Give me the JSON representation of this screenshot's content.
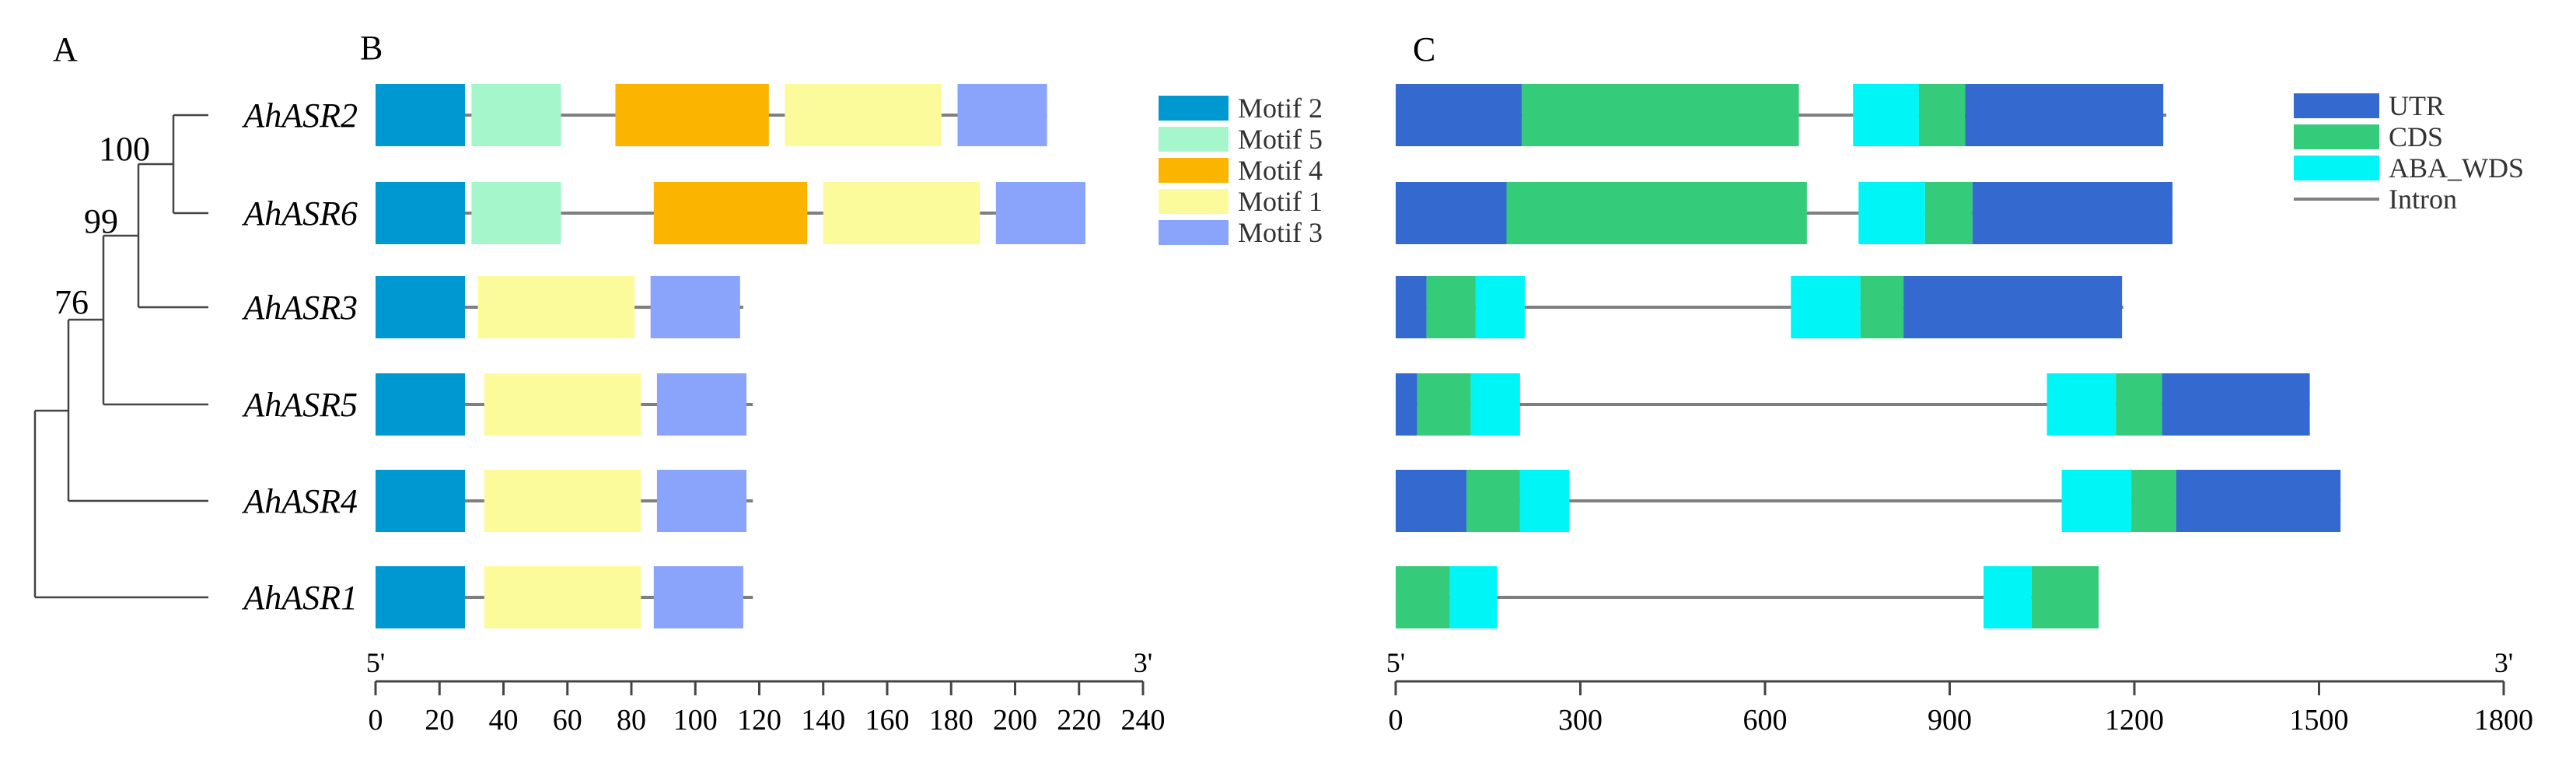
{
  "panels": {
    "a": "A",
    "b": "B",
    "c": "C"
  },
  "tree": {
    "bootstrap": [
      "100",
      "99",
      "76"
    ]
  },
  "colors": {
    "motif2": "#0098d0",
    "motif5": "#a5f7cb",
    "motif4": "#fbb500",
    "motif1": "#fbfb9c",
    "motif3": "#8aa4fb",
    "utr": "#3469cf",
    "cds": "#34cb7a",
    "aba": "#00f6f6",
    "intron": "#7f7f7f"
  },
  "motif_panel": {
    "legend": [
      {
        "key": "motif2",
        "label": "Motif 2"
      },
      {
        "key": "motif5",
        "label": "Motif 5"
      },
      {
        "key": "motif4",
        "label": "Motif 4"
      },
      {
        "key": "motif1",
        "label": "Motif 1"
      },
      {
        "key": "motif3",
        "label": "Motif 3"
      }
    ],
    "axis": {
      "min": 0,
      "max": 240,
      "ticks": [
        "0",
        "20",
        "40",
        "60",
        "80",
        "100",
        "120",
        "140",
        "160",
        "180",
        "200",
        "220",
        "240"
      ],
      "start_label": "5'",
      "end_label": "3'"
    },
    "genes": [
      {
        "name": "AhASR2",
        "length": 210,
        "motifs": [
          {
            "key": "motif2",
            "start": 0,
            "end": 28
          },
          {
            "key": "motif5",
            "start": 30,
            "end": 58
          },
          {
            "key": "motif4",
            "start": 75,
            "end": 123
          },
          {
            "key": "motif1",
            "start": 128,
            "end": 177
          },
          {
            "key": "motif3",
            "start": 182,
            "end": 210
          }
        ]
      },
      {
        "name": "AhASR6",
        "length": 222,
        "motifs": [
          {
            "key": "motif2",
            "start": 0,
            "end": 28
          },
          {
            "key": "motif5",
            "start": 30,
            "end": 58
          },
          {
            "key": "motif4",
            "start": 87,
            "end": 135
          },
          {
            "key": "motif1",
            "start": 140,
            "end": 189
          },
          {
            "key": "motif3",
            "start": 194,
            "end": 222
          }
        ]
      },
      {
        "name": "AhASR3",
        "length": 115,
        "motifs": [
          {
            "key": "motif2",
            "start": 0,
            "end": 28
          },
          {
            "key": "motif1",
            "start": 32,
            "end": 81
          },
          {
            "key": "motif3",
            "start": 86,
            "end": 114
          }
        ]
      },
      {
        "name": "AhASR5",
        "length": 118,
        "motifs": [
          {
            "key": "motif2",
            "start": 0,
            "end": 28
          },
          {
            "key": "motif1",
            "start": 34,
            "end": 83
          },
          {
            "key": "motif3",
            "start": 88,
            "end": 116
          }
        ]
      },
      {
        "name": "AhASR4",
        "length": 118,
        "motifs": [
          {
            "key": "motif2",
            "start": 0,
            "end": 28
          },
          {
            "key": "motif1",
            "start": 34,
            "end": 83
          },
          {
            "key": "motif3",
            "start": 88,
            "end": 116
          }
        ]
      },
      {
        "name": "AhASR1",
        "length": 118,
        "motifs": [
          {
            "key": "motif2",
            "start": 0,
            "end": 28
          },
          {
            "key": "motif1",
            "start": 34,
            "end": 83
          },
          {
            "key": "motif3",
            "start": 87,
            "end": 115
          }
        ]
      }
    ]
  },
  "structure_panel": {
    "legend": [
      {
        "key": "utr",
        "label": "UTR",
        "kind": "box"
      },
      {
        "key": "cds",
        "label": "CDS",
        "kind": "box"
      },
      {
        "key": "aba",
        "label": "ABA_WDS",
        "kind": "box"
      },
      {
        "key": "intron",
        "label": "Intron",
        "kind": "line"
      }
    ],
    "axis": {
      "min": 0,
      "max": 1800,
      "ticks": [
        "0",
        "300",
        "600",
        "900",
        "1200",
        "1500",
        "1800"
      ],
      "start_label": "5'",
      "end_label": "3'"
    },
    "genes": [
      {
        "name": "AhASR2",
        "length": 1252,
        "segments": [
          {
            "key": "utr",
            "start": 0,
            "end": 205
          },
          {
            "key": "cds",
            "start": 205,
            "end": 655
          },
          {
            "key": "aba",
            "start": 743,
            "end": 850
          },
          {
            "key": "cds",
            "start": 850,
            "end": 925
          },
          {
            "key": "utr",
            "start": 925,
            "end": 1247
          }
        ]
      },
      {
        "name": "AhASR6",
        "length": 1262,
        "segments": [
          {
            "key": "utr",
            "start": 0,
            "end": 180
          },
          {
            "key": "cds",
            "start": 180,
            "end": 668
          },
          {
            "key": "aba",
            "start": 752,
            "end": 860
          },
          {
            "key": "cds",
            "start": 860,
            "end": 937
          },
          {
            "key": "utr",
            "start": 937,
            "end": 1262
          }
        ]
      },
      {
        "name": "AhASR3",
        "length": 1182,
        "segments": [
          {
            "key": "utr",
            "start": 0,
            "end": 50
          },
          {
            "key": "cds",
            "start": 50,
            "end": 130
          },
          {
            "key": "aba",
            "start": 130,
            "end": 210
          },
          {
            "key": "aba",
            "start": 642,
            "end": 755
          },
          {
            "key": "cds",
            "start": 755,
            "end": 825
          },
          {
            "key": "utr",
            "start": 825,
            "end": 1180
          }
        ]
      },
      {
        "name": "AhASR5",
        "length": 1485,
        "segments": [
          {
            "key": "utr",
            "start": 0,
            "end": 35
          },
          {
            "key": "cds",
            "start": 35,
            "end": 122
          },
          {
            "key": "aba",
            "start": 122,
            "end": 202
          },
          {
            "key": "aba",
            "start": 1058,
            "end": 1170
          },
          {
            "key": "cds",
            "start": 1170,
            "end": 1245
          },
          {
            "key": "utr",
            "start": 1245,
            "end": 1485
          }
        ]
      },
      {
        "name": "AhASR4",
        "length": 1535,
        "segments": [
          {
            "key": "utr",
            "start": 0,
            "end": 115
          },
          {
            "key": "cds",
            "start": 115,
            "end": 202
          },
          {
            "key": "aba",
            "start": 202,
            "end": 282
          },
          {
            "key": "aba",
            "start": 1082,
            "end": 1195
          },
          {
            "key": "cds",
            "start": 1195,
            "end": 1268
          },
          {
            "key": "utr",
            "start": 1268,
            "end": 1535
          }
        ]
      },
      {
        "name": "AhASR1",
        "length": 1142,
        "segments": [
          {
            "key": "cds",
            "start": 0,
            "end": 88
          },
          {
            "key": "aba",
            "start": 88,
            "end": 165
          },
          {
            "key": "aba",
            "start": 955,
            "end": 1033
          },
          {
            "key": "cds",
            "start": 1033,
            "end": 1142
          }
        ]
      }
    ]
  }
}
